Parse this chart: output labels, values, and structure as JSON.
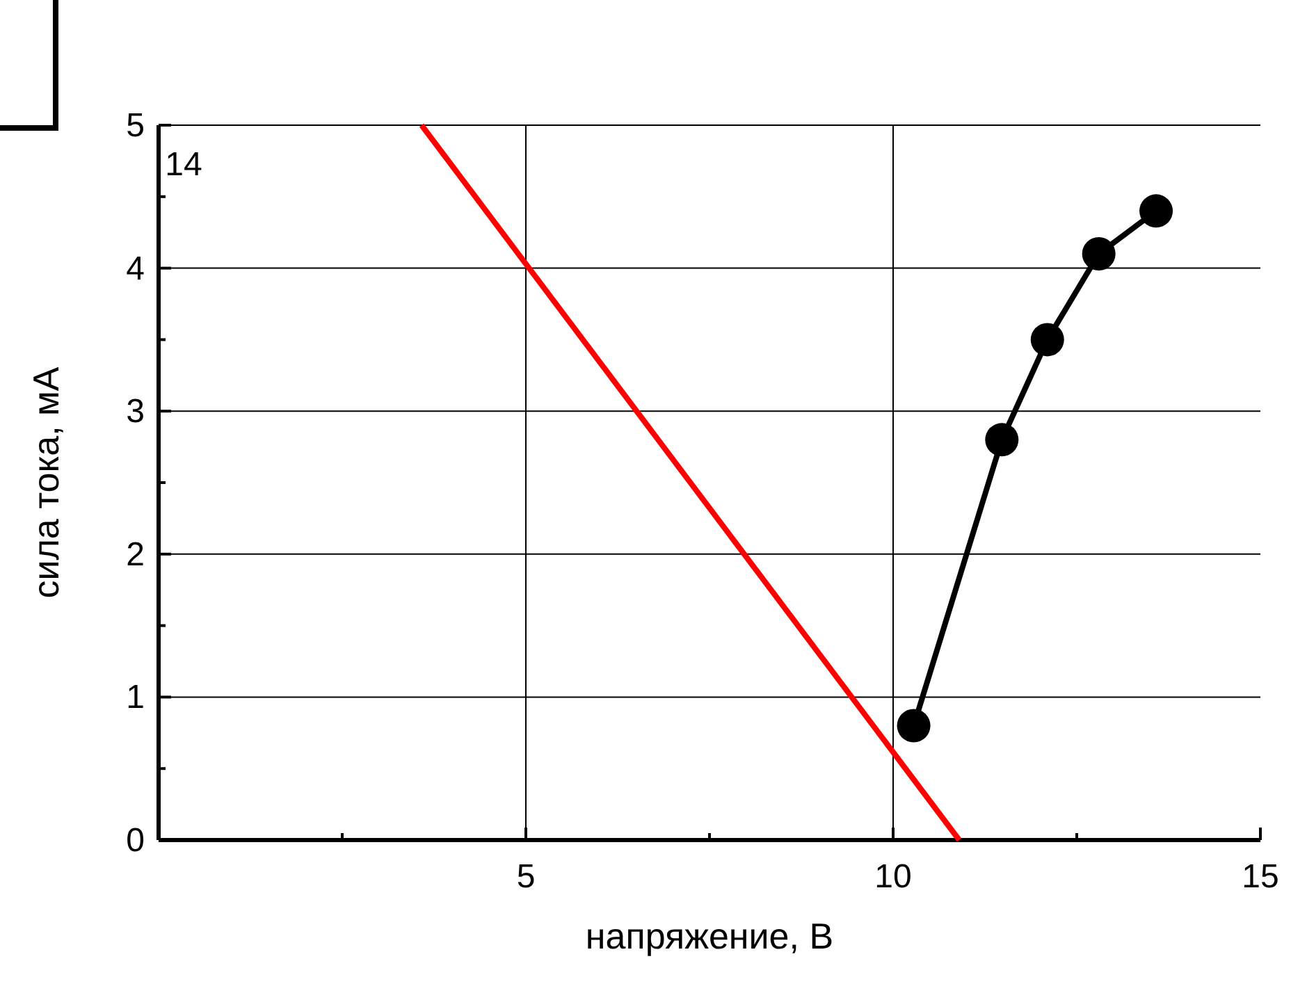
{
  "chart_data": {
    "type": "line",
    "xlabel": "напряжение, В",
    "ylabel": "сила тока, мА",
    "annotations": [
      "14"
    ],
    "xlim": [
      0,
      15
    ],
    "ylim": [
      0,
      5
    ],
    "xticks": [
      {
        "value": 2.5,
        "label": null
      },
      5,
      {
        "value": 7.5,
        "label": null
      },
      10,
      {
        "value": 12.5,
        "label": null
      },
      15
    ],
    "yticks": [
      0,
      {
        "value": 0.5,
        "label": null
      },
      1,
      {
        "value": 1.5,
        "label": null
      },
      2,
      {
        "value": 2.5,
        "label": null
      },
      3,
      {
        "value": 3.5,
        "label": null
      },
      4,
      {
        "value": 4.5,
        "label": null
      },
      5
    ],
    "grid": true,
    "series": [
      {
        "color": "#000000",
        "marker": "circle",
        "x": [
          10.28,
          11.48,
          12.1,
          12.8,
          13.58
        ],
        "values": [
          0.8,
          2.8,
          3.5,
          4.1,
          4.4
        ]
      },
      {
        "color": "#ff0000",
        "marker": "none",
        "x": [
          3.58,
          10.9
        ],
        "values": [
          5,
          0
        ]
      }
    ]
  }
}
